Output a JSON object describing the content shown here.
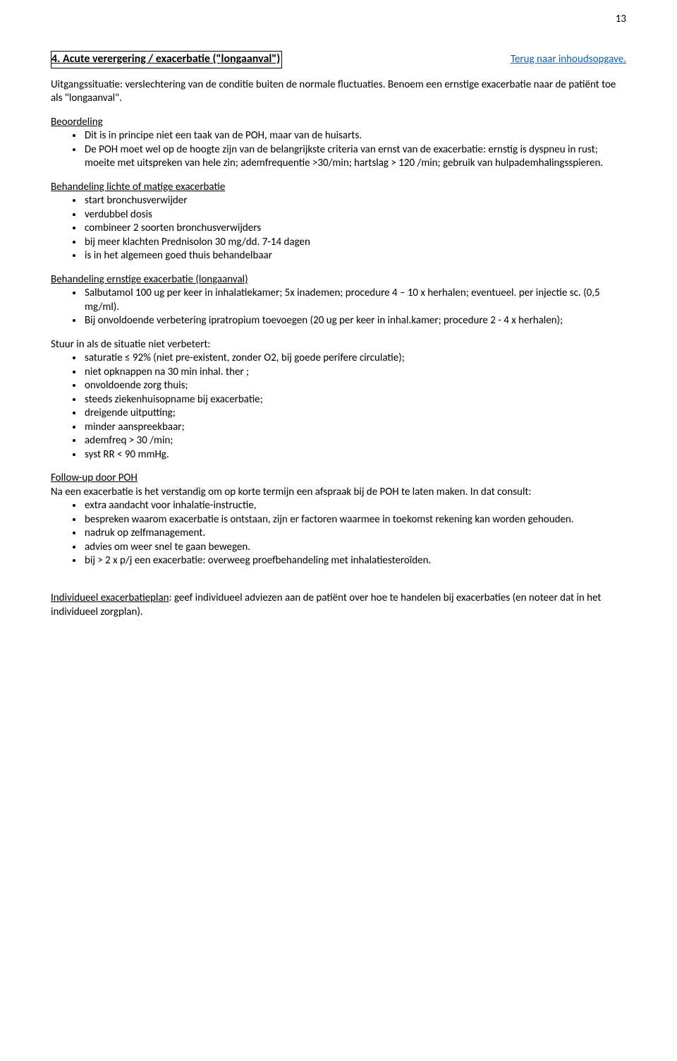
{
  "page_number": "13",
  "title": "4.  Acute verergering / exacerbatie (\"longaanval\")",
  "toc_link": "Terug naar inhoudsopgave.",
  "intro": "Uitgangssituatie: verslechtering  van de conditie buiten de normale fluctuaties. Benoem een ernstige exacerbatie naar de patiënt toe als \"longaanval\".",
  "sections": {
    "beoordeling": {
      "head": "Beoordeling",
      "items": [
        "Dit is in principe niet een taak van de POH, maar van de huisarts.",
        "De POH moet wel op de hoogte zijn van de belangrijkste criteria van ernst van de exacerbatie: ernstig is dyspneu in rust; moeite met uitspreken van hele zin; ademfrequentie >30/min; hartslag > 120 /min; gebruik van hulpademhalingsspieren."
      ]
    },
    "licht": {
      "head": "Behandeling lichte of matige exacerbatie",
      "items": [
        "start bronchusverwijder",
        "verdubbel dosis",
        "combineer 2 soorten bronchusverwijders",
        "bij meer klachten Prednisolon 30 mg/dd.  7-14 dagen",
        "is in het algemeen goed thuis behandelbaar"
      ]
    },
    "ernstig": {
      "head": "Behandeling ernstige exacerbatie (longaanval)",
      "items": [
        "Salbutamol 100 ug per keer in inhalatiekamer;  5x  inademen; procedure 4 – 10 x herhalen; eventueel. per injectie sc. (0,5 mg/ml).",
        "Bij onvoldoende verbetering ipratropium toevoegen (20 ug per keer in inhal.kamer; procedure 2 - 4 x herhalen);"
      ]
    },
    "stuurin": {
      "head": "Stuur in als de situatie niet verbetert:",
      "items": [
        "saturatie ≤ 92%  (niet pre-existent, zonder O2, bij goede perifere circulatie);",
        "niet opknappen na 30 min inhal. ther ;",
        "onvoldoende zorg thuis;",
        "steeds ziekenhuisopname bij exacerbatie;",
        "dreigende uitputting;",
        "minder aanspreekbaar;",
        "ademfreq > 30 /min;",
        "syst RR < 90 mmHg."
      ]
    },
    "followup": {
      "head": "Follow-up door POH",
      "intro": " Na een exacerbatie is het verstandig om op korte termijn een afspraak bij de POH te laten maken. In dat consult:",
      "items": [
        "extra aandacht voor inhalatie-instructie,",
        "bespreken waarom exacerbatie is ontstaan, zijn er factoren waarmee in toekomst rekening kan worden gehouden.",
        "nadruk op zelfmanagement.",
        "advies om weer snel  te gaan bewegen.",
        "bij > 2 x p/j een exacerbatie: overweeg proefbehandeling met inhalatiesteroïden."
      ]
    }
  },
  "closing": {
    "lead": "Individueel exacerbatieplan",
    "rest": ": geef individueel adviezen aan de patiënt over hoe te handelen bij exacerbaties (en noteer dat in het individueel zorgplan)."
  }
}
